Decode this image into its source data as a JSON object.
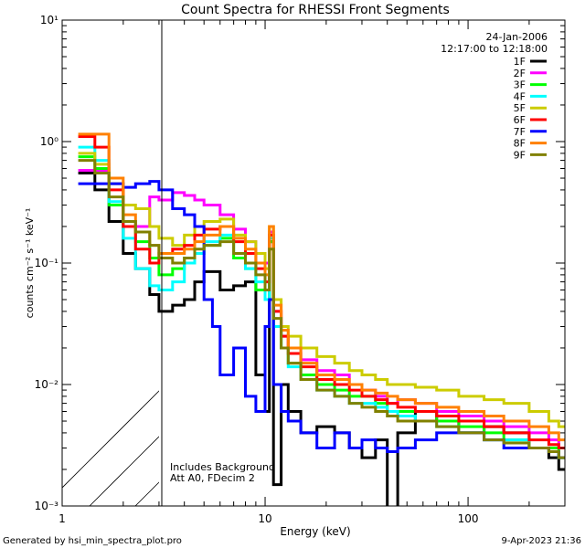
{
  "chart_data": {
    "type": "line",
    "title": "Count Spectra for RHESSI Front Segments",
    "xlabel": "Energy (keV)",
    "ylabel": "counts cm⁻² s⁻¹ keV⁻¹",
    "xscale": "log",
    "yscale": "log",
    "xlim": [
      1,
      300
    ],
    "ylim": [
      0.001,
      10
    ],
    "x_ticks": [
      {
        "value": 1,
        "label": "1"
      },
      {
        "value": 10,
        "label": "10"
      },
      {
        "value": 100,
        "label": "100"
      }
    ],
    "y_ticks": [
      {
        "value": 10,
        "label": "10¹"
      },
      {
        "value": 1,
        "label": "10⁰"
      },
      {
        "value": 0.1,
        "label": "10⁻¹"
      },
      {
        "value": 0.01,
        "label": "10⁻²"
      },
      {
        "value": 0.001,
        "label": "10⁻³"
      }
    ],
    "date": "24-Jan-2006",
    "time_range": "12:17:00 to 12:18:00",
    "hatched_region_below_keV": 3,
    "annotations": [
      "Includes Background",
      "Att A0, FDecim 2"
    ],
    "footer_left": "Generated by hsi_min_spectra_plot.pro",
    "footer_right": "9-Apr-2023 21:36",
    "series": [
      {
        "name": "1F",
        "color": "#000000",
        "x": [
          1.2,
          1.45,
          1.7,
          2,
          2.3,
          2.7,
          3,
          3.5,
          4,
          4.5,
          5,
          6,
          7,
          8,
          9,
          10,
          10.5,
          11,
          12,
          13,
          15,
          18,
          22,
          26,
          30,
          35,
          40,
          45,
          55,
          70,
          90,
          120,
          150,
          200,
          250,
          280
        ],
        "values": [
          0.55,
          0.4,
          0.22,
          0.12,
          0.09,
          0.055,
          0.04,
          0.045,
          0.05,
          0.07,
          0.085,
          0.06,
          0.065,
          0.07,
          0.012,
          0.006,
          0.15,
          0.0015,
          0.01,
          0.006,
          0.004,
          0.0045,
          0.004,
          0.003,
          0.0025,
          0.0035,
          0.0008,
          0.004,
          0.006,
          0.005,
          0.004,
          0.0045,
          0.004,
          0.003,
          0.0025,
          0.002
        ]
      },
      {
        "name": "2F",
        "color": "#ff00ff",
        "x": [
          1.2,
          1.45,
          1.7,
          2,
          2.3,
          2.7,
          3,
          3.5,
          4,
          4.5,
          5,
          6,
          7,
          8,
          9,
          10,
          10.5,
          11,
          12,
          13,
          15,
          18,
          22,
          26,
          30,
          35,
          40,
          45,
          55,
          70,
          90,
          120,
          150,
          200,
          250,
          280
        ],
        "values": [
          0.58,
          0.58,
          0.3,
          0.22,
          0.2,
          0.35,
          0.33,
          0.38,
          0.36,
          0.33,
          0.3,
          0.25,
          0.19,
          0.15,
          0.12,
          0.1,
          0.18,
          0.04,
          0.025,
          0.02,
          0.016,
          0.013,
          0.012,
          0.01,
          0.009,
          0.008,
          0.007,
          0.0075,
          0.007,
          0.006,
          0.0055,
          0.005,
          0.0045,
          0.004,
          0.0035,
          0.003
        ]
      },
      {
        "name": "3F",
        "color": "#00ff00",
        "x": [
          1.2,
          1.45,
          1.7,
          2,
          2.3,
          2.7,
          3,
          3.5,
          4,
          4.5,
          5,
          6,
          7,
          8,
          9,
          10,
          10.5,
          11,
          12,
          13,
          15,
          18,
          22,
          26,
          30,
          35,
          40,
          45,
          55,
          70,
          90,
          120,
          150,
          200,
          250,
          280
        ],
        "values": [
          0.75,
          0.6,
          0.3,
          0.2,
          0.15,
          0.11,
          0.08,
          0.09,
          0.11,
          0.12,
          0.14,
          0.16,
          0.11,
          0.09,
          0.06,
          0.05,
          0.15,
          0.03,
          0.02,
          0.015,
          0.012,
          0.01,
          0.009,
          0.008,
          0.008,
          0.007,
          0.006,
          0.006,
          0.006,
          0.005,
          0.0045,
          0.004,
          0.0035,
          0.003,
          0.003,
          0.0025
        ]
      },
      {
        "name": "4F",
        "color": "#00ffff",
        "x": [
          1.2,
          1.45,
          1.7,
          2,
          2.3,
          2.7,
          3,
          3.5,
          4,
          4.5,
          5,
          6,
          7,
          8,
          9,
          10,
          10.5,
          11,
          12,
          13,
          15,
          18,
          22,
          26,
          30,
          35,
          40,
          45,
          55,
          70,
          90,
          120,
          150,
          200,
          250,
          280
        ],
        "values": [
          0.9,
          0.7,
          0.32,
          0.16,
          0.09,
          0.065,
          0.06,
          0.07,
          0.1,
          0.12,
          0.15,
          0.17,
          0.12,
          0.09,
          0.07,
          0.05,
          0.16,
          0.03,
          0.02,
          0.014,
          0.011,
          0.009,
          0.008,
          0.007,
          0.007,
          0.0065,
          0.006,
          0.0055,
          0.005,
          0.0045,
          0.004,
          0.0035,
          0.0035,
          0.003,
          0.0028,
          0.0025
        ]
      },
      {
        "name": "5F",
        "color": "#cccc00",
        "x": [
          1.2,
          1.45,
          1.7,
          2,
          2.3,
          2.7,
          3,
          3.5,
          4,
          4.5,
          5,
          6,
          7,
          8,
          9,
          10,
          10.5,
          11,
          12,
          13,
          15,
          18,
          22,
          26,
          30,
          35,
          40,
          45,
          55,
          70,
          90,
          120,
          150,
          200,
          250,
          280
        ],
        "values": [
          0.8,
          0.65,
          0.45,
          0.3,
          0.28,
          0.2,
          0.16,
          0.14,
          0.17,
          0.2,
          0.22,
          0.23,
          0.17,
          0.15,
          0.12,
          0.09,
          0.2,
          0.05,
          0.03,
          0.025,
          0.02,
          0.017,
          0.015,
          0.013,
          0.012,
          0.011,
          0.01,
          0.01,
          0.0095,
          0.009,
          0.008,
          0.0075,
          0.007,
          0.006,
          0.005,
          0.0045
        ]
      },
      {
        "name": "6F",
        "color": "#ff0000",
        "x": [
          1.2,
          1.45,
          1.7,
          2,
          2.3,
          2.7,
          3,
          3.5,
          4,
          4.5,
          5,
          6,
          7,
          8,
          9,
          10,
          10.5,
          11,
          12,
          13,
          15,
          18,
          22,
          26,
          30,
          35,
          40,
          45,
          55,
          70,
          90,
          120,
          150,
          200,
          250,
          280
        ],
        "values": [
          1.1,
          0.9,
          0.4,
          0.2,
          0.13,
          0.1,
          0.12,
          0.13,
          0.14,
          0.17,
          0.19,
          0.2,
          0.15,
          0.12,
          0.09,
          0.07,
          0.17,
          0.04,
          0.025,
          0.018,
          0.014,
          0.011,
          0.01,
          0.009,
          0.008,
          0.0075,
          0.007,
          0.0065,
          0.006,
          0.0055,
          0.005,
          0.0045,
          0.004,
          0.0035,
          0.0032,
          0.003
        ]
      },
      {
        "name": "7F",
        "color": "#0000ff",
        "x": [
          1.2,
          1.45,
          1.7,
          2,
          2.3,
          2.7,
          3,
          3.5,
          4,
          4.5,
          5,
          5.5,
          6,
          7,
          8,
          9,
          10,
          10.5,
          11,
          12,
          13,
          15,
          18,
          22,
          26,
          30,
          35,
          40,
          45,
          55,
          70,
          90,
          120,
          150,
          200,
          250,
          280
        ],
        "values": [
          0.45,
          0.45,
          0.45,
          0.42,
          0.45,
          0.47,
          0.4,
          0.28,
          0.25,
          0.2,
          0.05,
          0.03,
          0.012,
          0.02,
          0.008,
          0.006,
          0.03,
          0.05,
          0.01,
          0.006,
          0.005,
          0.004,
          0.003,
          0.004,
          0.003,
          0.0035,
          0.003,
          0.0028,
          0.003,
          0.0035,
          0.004,
          0.004,
          0.0035,
          0.003,
          0.003,
          0.0028,
          0.0025
        ]
      },
      {
        "name": "8F",
        "color": "#ff8000",
        "x": [
          1.2,
          1.45,
          1.7,
          2,
          2.3,
          2.7,
          3,
          3.5,
          4,
          4.5,
          5,
          6,
          7,
          8,
          9,
          10,
          10.5,
          11,
          12,
          13,
          15,
          18,
          22,
          26,
          30,
          35,
          40,
          45,
          55,
          70,
          90,
          120,
          150,
          200,
          250,
          280
        ],
        "values": [
          1.15,
          1.15,
          0.5,
          0.25,
          0.18,
          0.14,
          0.12,
          0.12,
          0.13,
          0.15,
          0.17,
          0.2,
          0.16,
          0.13,
          0.1,
          0.08,
          0.2,
          0.045,
          0.028,
          0.02,
          0.015,
          0.012,
          0.011,
          0.01,
          0.009,
          0.0085,
          0.008,
          0.0075,
          0.007,
          0.0065,
          0.006,
          0.0055,
          0.005,
          0.0045,
          0.004,
          0.0035
        ]
      },
      {
        "name": "9F",
        "color": "#808000",
        "x": [
          1.2,
          1.45,
          1.7,
          2,
          2.3,
          2.7,
          3,
          3.5,
          4,
          4.5,
          5,
          6,
          7,
          8,
          9,
          10,
          10.5,
          11,
          12,
          13,
          15,
          18,
          22,
          26,
          30,
          35,
          40,
          45,
          55,
          70,
          90,
          120,
          150,
          200,
          250,
          280
        ],
        "values": [
          0.7,
          0.55,
          0.35,
          0.22,
          0.18,
          0.14,
          0.11,
          0.1,
          0.11,
          0.13,
          0.14,
          0.15,
          0.12,
          0.1,
          0.08,
          0.06,
          0.13,
          0.035,
          0.02,
          0.015,
          0.011,
          0.009,
          0.008,
          0.007,
          0.0065,
          0.006,
          0.0055,
          0.005,
          0.005,
          0.0045,
          0.004,
          0.0035,
          0.0033,
          0.003,
          0.0028,
          0.0025
        ]
      }
    ]
  }
}
